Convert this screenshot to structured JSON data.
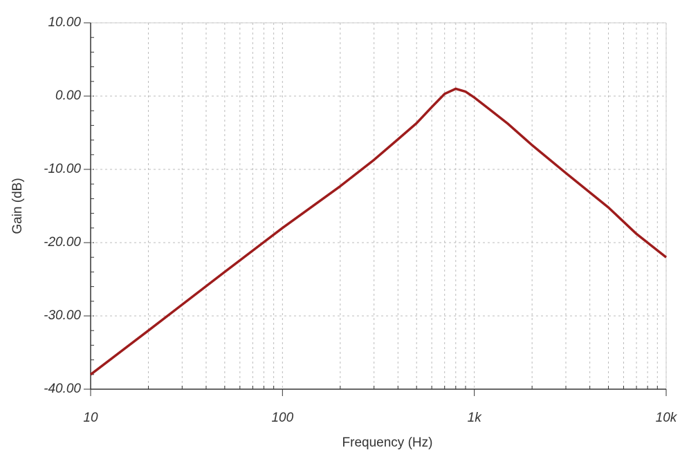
{
  "chart_data": {
    "type": "line",
    "x_label": "Frequency (Hz)",
    "y_label": "Gain (dB)",
    "xscale": "log",
    "grid": true,
    "x": [
      10,
      20,
      50,
      100,
      200,
      300,
      400,
      500,
      600,
      700,
      800,
      900,
      1000,
      1200,
      1500,
      2000,
      3000,
      5000,
      7000,
      10000
    ],
    "series": [
      {
        "name": "Gain",
        "color": "#9e1c1c",
        "values": [
          -38,
          -32,
          -24,
          -18,
          -12.3,
          -8.7,
          -5.9,
          -3.7,
          -1.5,
          0.3,
          1.0,
          0.6,
          -0.2,
          -1.8,
          -3.8,
          -6.7,
          -10.5,
          -15.2,
          -18.8,
          -22
        ]
      }
    ],
    "xlim": [
      10,
      10000
    ],
    "xticks": [
      10,
      100,
      {
        "value": 1000,
        "label": "1k"
      },
      {
        "value": 10000,
        "label": "10k"
      }
    ],
    "ylim": [
      -40,
      10
    ],
    "yticks": [
      {
        "value": -40,
        "label": "-40.00"
      },
      {
        "value": -30,
        "label": "-30.00"
      },
      {
        "value": -20,
        "label": "-20.00"
      },
      {
        "value": -10,
        "label": "-10.00"
      },
      {
        "value": 0,
        "label": "0.00"
      },
      {
        "value": 10,
        "label": "10.00"
      }
    ]
  }
}
